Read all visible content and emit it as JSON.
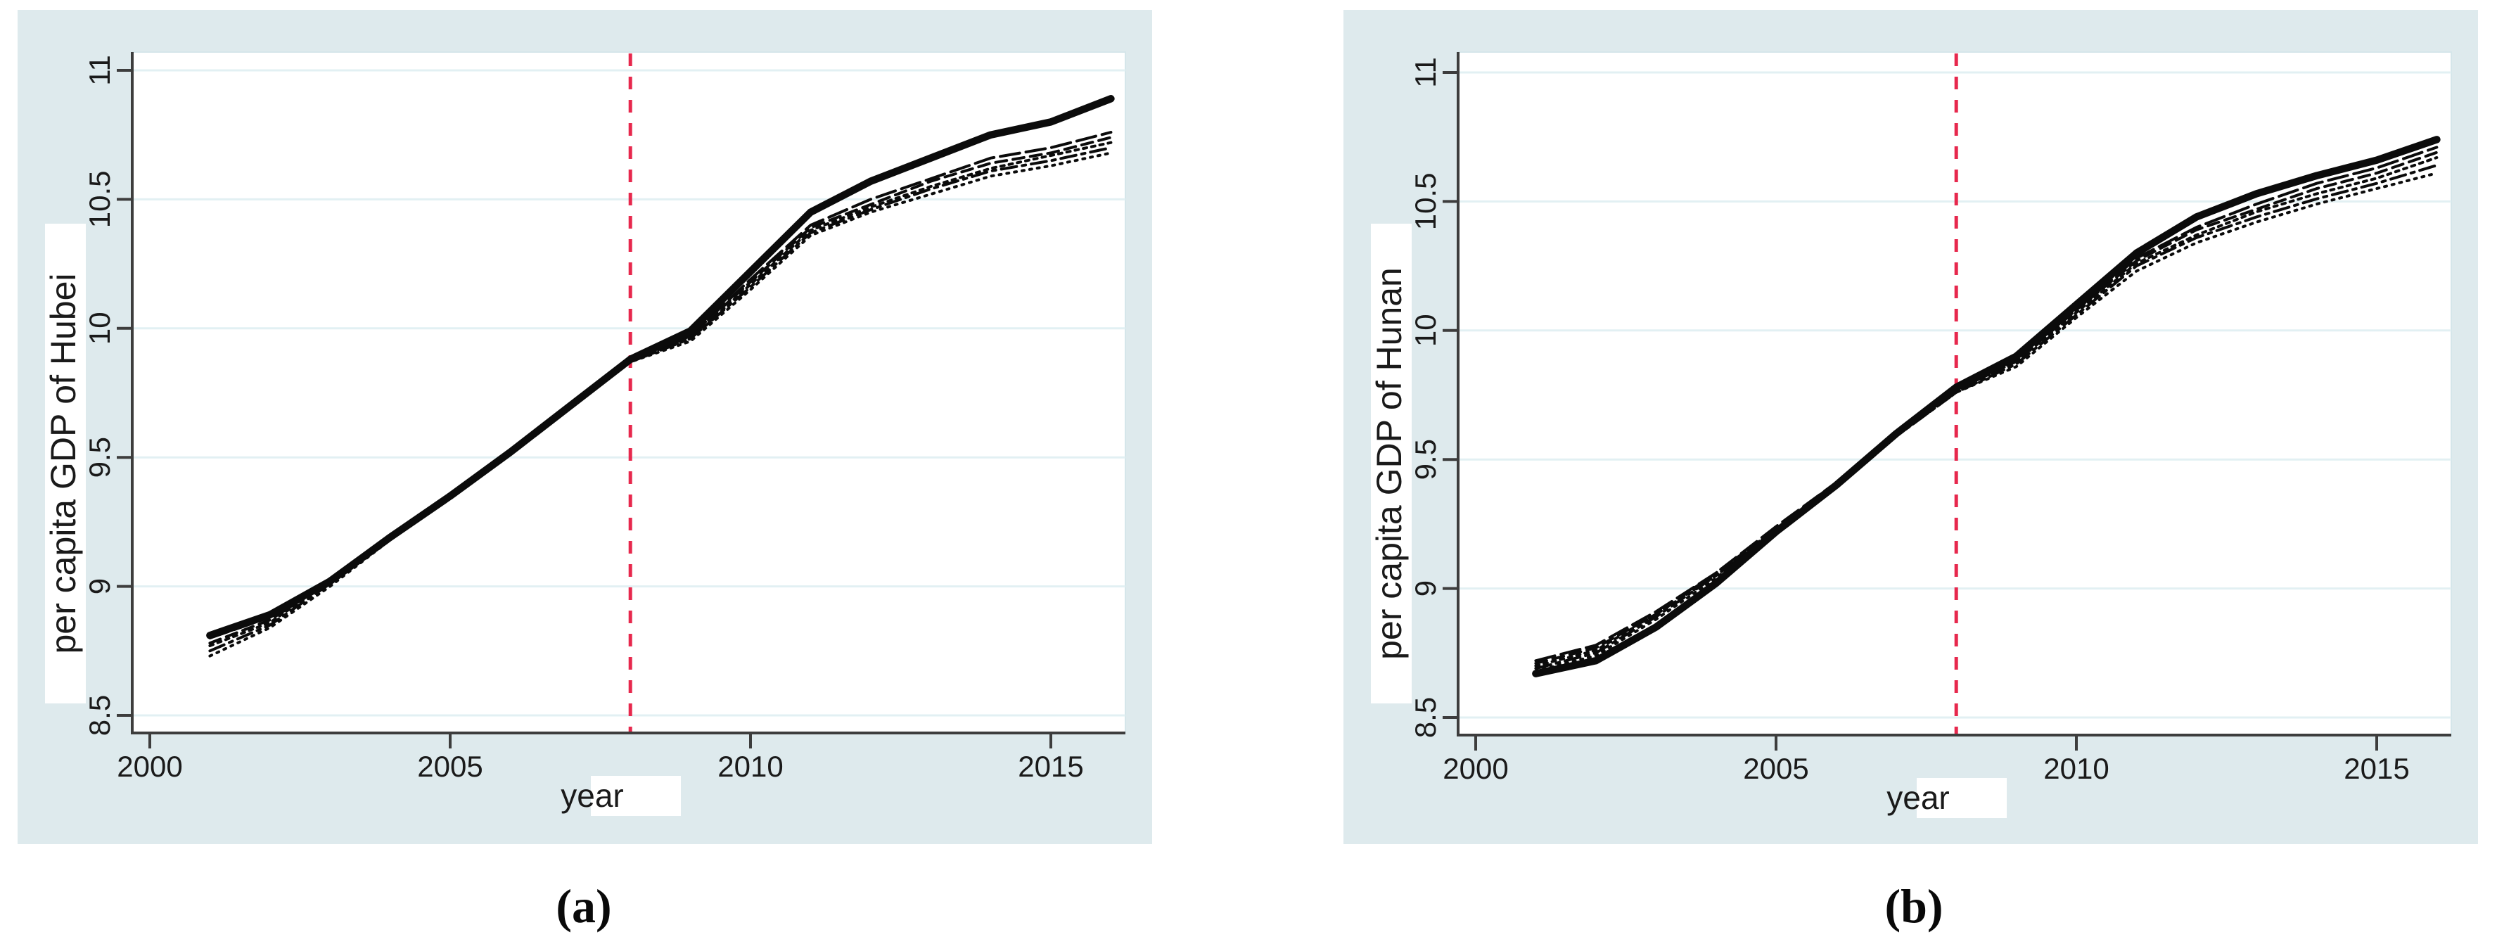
{
  "figure": {
    "colors": {
      "panel_background": "#deeaed",
      "plot_background": "#ffffff",
      "plot_border": "#d5e6ea",
      "gridline": "#e2f0f3",
      "axis_line": "#3d3d3d",
      "tick_text": "#1a1a1a",
      "treatment_line": "#e7284d",
      "series_line": "#0b0b0b",
      "label_strip": "#ffffff"
    }
  },
  "chart_data": [
    {
      "type": "line",
      "panel": "a",
      "caption": "(a)",
      "xlabel": "year",
      "ylabel": "per capita GDP of Hubei",
      "x_ticks": [
        {
          "label": "2000",
          "value": 2000
        },
        {
          "label": "2005",
          "value": 2005
        },
        {
          "label": "2010",
          "value": 2010
        },
        {
          "label": "2015",
          "value": 2015
        }
      ],
      "y_ticks": [
        {
          "label": "8.5",
          "value": 8.5
        },
        {
          "label": "9",
          "value": 9
        },
        {
          "label": "9.5",
          "value": 9.5
        },
        {
          "label": "10",
          "value": 10
        },
        {
          "label": "10.5",
          "value": 10.5
        },
        {
          "label": "11",
          "value": 11
        }
      ],
      "xlim": [
        1999.7,
        2016.25
      ],
      "ylim": [
        8.43,
        11.07
      ],
      "grid": true,
      "legend": "none",
      "treatment_year": 2008,
      "x": [
        2001,
        2002,
        2003,
        2004,
        2005,
        2006,
        2007,
        2008,
        2009,
        2010,
        2011,
        2012,
        2013,
        2014,
        2015,
        2016
      ],
      "series": [
        {
          "id": "actual",
          "style": "solid",
          "values": [
            8.81,
            8.89,
            9.02,
            9.19,
            9.35,
            9.52,
            9.7,
            9.88,
            9.99,
            10.22,
            10.45,
            10.57,
            10.66,
            10.75,
            10.8,
            10.89
          ]
        },
        {
          "id": "placebo-1",
          "style": "dotted",
          "values": [
            8.73,
            8.84,
            9.0,
            9.18,
            9.35,
            9.52,
            9.69,
            9.87,
            9.95,
            10.15,
            10.36,
            10.45,
            10.52,
            10.59,
            10.63,
            10.68
          ]
        },
        {
          "id": "placebo-2",
          "style": "dashdot",
          "values": [
            8.75,
            8.85,
            9.01,
            9.19,
            9.35,
            9.52,
            9.7,
            9.87,
            9.96,
            10.16,
            10.37,
            10.46,
            10.54,
            10.61,
            10.65,
            10.7
          ]
        },
        {
          "id": "placebo-3",
          "style": "dot",
          "values": [
            8.77,
            8.86,
            9.02,
            9.19,
            9.36,
            9.53,
            9.7,
            9.88,
            9.96,
            10.17,
            10.38,
            10.47,
            10.55,
            10.62,
            10.67,
            10.72
          ]
        },
        {
          "id": "placebo-4",
          "style": "dash",
          "values": [
            8.78,
            8.87,
            9.02,
            9.2,
            9.36,
            9.53,
            9.7,
            9.88,
            9.97,
            10.18,
            10.39,
            10.48,
            10.57,
            10.64,
            10.68,
            10.74
          ]
        },
        {
          "id": "placebo-5",
          "style": "longdash",
          "values": [
            8.8,
            8.88,
            9.03,
            9.2,
            9.36,
            9.53,
            9.7,
            9.88,
            9.97,
            10.19,
            10.4,
            10.5,
            10.58,
            10.66,
            10.7,
            10.76
          ]
        }
      ]
    },
    {
      "type": "line",
      "panel": "b",
      "caption": "(b)",
      "xlabel": "year",
      "ylabel": "per capita GDP of Hunan",
      "x_ticks": [
        {
          "label": "2000",
          "value": 2000
        },
        {
          "label": "2005",
          "value": 2005
        },
        {
          "label": "2010",
          "value": 2010
        },
        {
          "label": "2015",
          "value": 2015
        }
      ],
      "y_ticks": [
        {
          "label": "8.5",
          "value": 8.5
        },
        {
          "label": "9",
          "value": 9
        },
        {
          "label": "9.5",
          "value": 9.5
        },
        {
          "label": "10",
          "value": 10
        },
        {
          "label": "10.5",
          "value": 10.5
        },
        {
          "label": "11",
          "value": 11
        }
      ],
      "xlim": [
        1999.7,
        2016.25
      ],
      "ylim": [
        8.43,
        11.07
      ],
      "grid": true,
      "legend": "none",
      "treatment_year": 2008,
      "x": [
        2001,
        2002,
        2003,
        2004,
        2005,
        2006,
        2007,
        2008,
        2009,
        2010,
        2011,
        2012,
        2013,
        2014,
        2015,
        2016
      ],
      "series": [
        {
          "id": "actual",
          "style": "solid",
          "values": [
            8.67,
            8.72,
            8.85,
            9.02,
            9.22,
            9.4,
            9.6,
            9.78,
            9.9,
            10.1,
            10.3,
            10.44,
            10.53,
            10.6,
            10.66,
            10.74
          ]
        },
        {
          "id": "placebo-1",
          "style": "dotted",
          "values": [
            8.68,
            8.74,
            8.88,
            9.04,
            9.22,
            9.4,
            9.59,
            9.76,
            9.86,
            10.05,
            10.23,
            10.34,
            10.42,
            10.49,
            10.55,
            10.61
          ]
        },
        {
          "id": "placebo-2",
          "style": "dashdot",
          "values": [
            8.69,
            8.75,
            8.89,
            9.05,
            9.22,
            9.4,
            9.59,
            9.76,
            9.87,
            10.06,
            10.25,
            10.36,
            10.44,
            10.51,
            10.57,
            10.64
          ]
        },
        {
          "id": "placebo-3",
          "style": "dot",
          "values": [
            8.7,
            8.76,
            8.9,
            9.05,
            9.23,
            9.4,
            9.6,
            9.77,
            9.88,
            10.07,
            10.26,
            10.37,
            10.46,
            10.53,
            10.59,
            10.67
          ]
        },
        {
          "id": "placebo-4",
          "style": "dash",
          "values": [
            8.71,
            8.77,
            8.9,
            9.06,
            9.23,
            9.41,
            9.6,
            9.77,
            9.88,
            10.08,
            10.27,
            10.39,
            10.47,
            10.55,
            10.61,
            10.69
          ]
        },
        {
          "id": "placebo-5",
          "style": "longdash",
          "values": [
            8.72,
            8.78,
            8.91,
            9.06,
            9.24,
            9.41,
            9.6,
            9.78,
            9.89,
            10.08,
            10.28,
            10.4,
            10.49,
            10.57,
            10.63,
            10.71
          ]
        }
      ]
    }
  ]
}
